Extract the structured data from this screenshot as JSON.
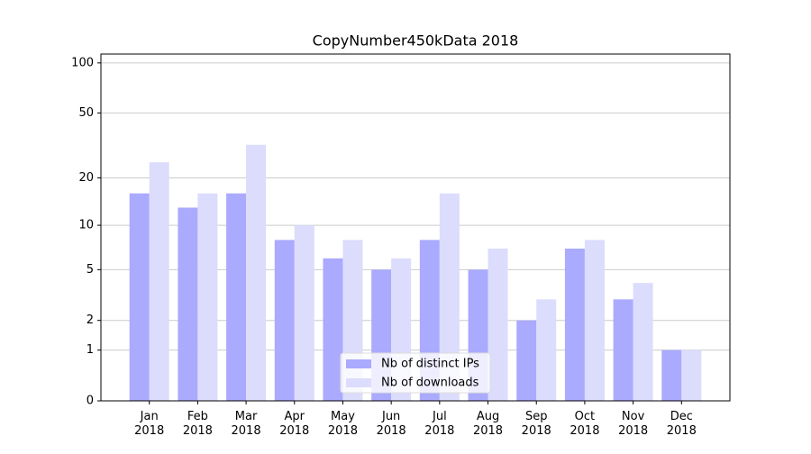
{
  "chart_data": {
    "type": "bar",
    "title": "CopyNumber450kData 2018",
    "categories": [
      "Jan 2018",
      "Feb 2018",
      "Mar 2018",
      "Apr 2018",
      "May 2018",
      "Jun 2018",
      "Jul 2018",
      "Aug 2018",
      "Sep 2018",
      "Oct 2018",
      "Nov 2018",
      "Dec 2018"
    ],
    "series": [
      {
        "name": "Nb of distinct IPs",
        "color": "#aaaaff",
        "values": [
          16,
          13,
          16,
          8,
          6,
          5,
          8,
          5,
          2,
          7,
          3,
          1
        ]
      },
      {
        "name": "Nb of downloads",
        "color": "#dcdcfc",
        "values": [
          25,
          16,
          32,
          10,
          8,
          6,
          16,
          7,
          3,
          8,
          4,
          1
        ]
      }
    ],
    "ylim": [
      0,
      113
    ],
    "yticks": [
      0,
      1,
      2,
      5,
      10,
      20,
      50,
      100
    ],
    "yscale": "log1p",
    "grid": true,
    "legend": "lower center"
  }
}
